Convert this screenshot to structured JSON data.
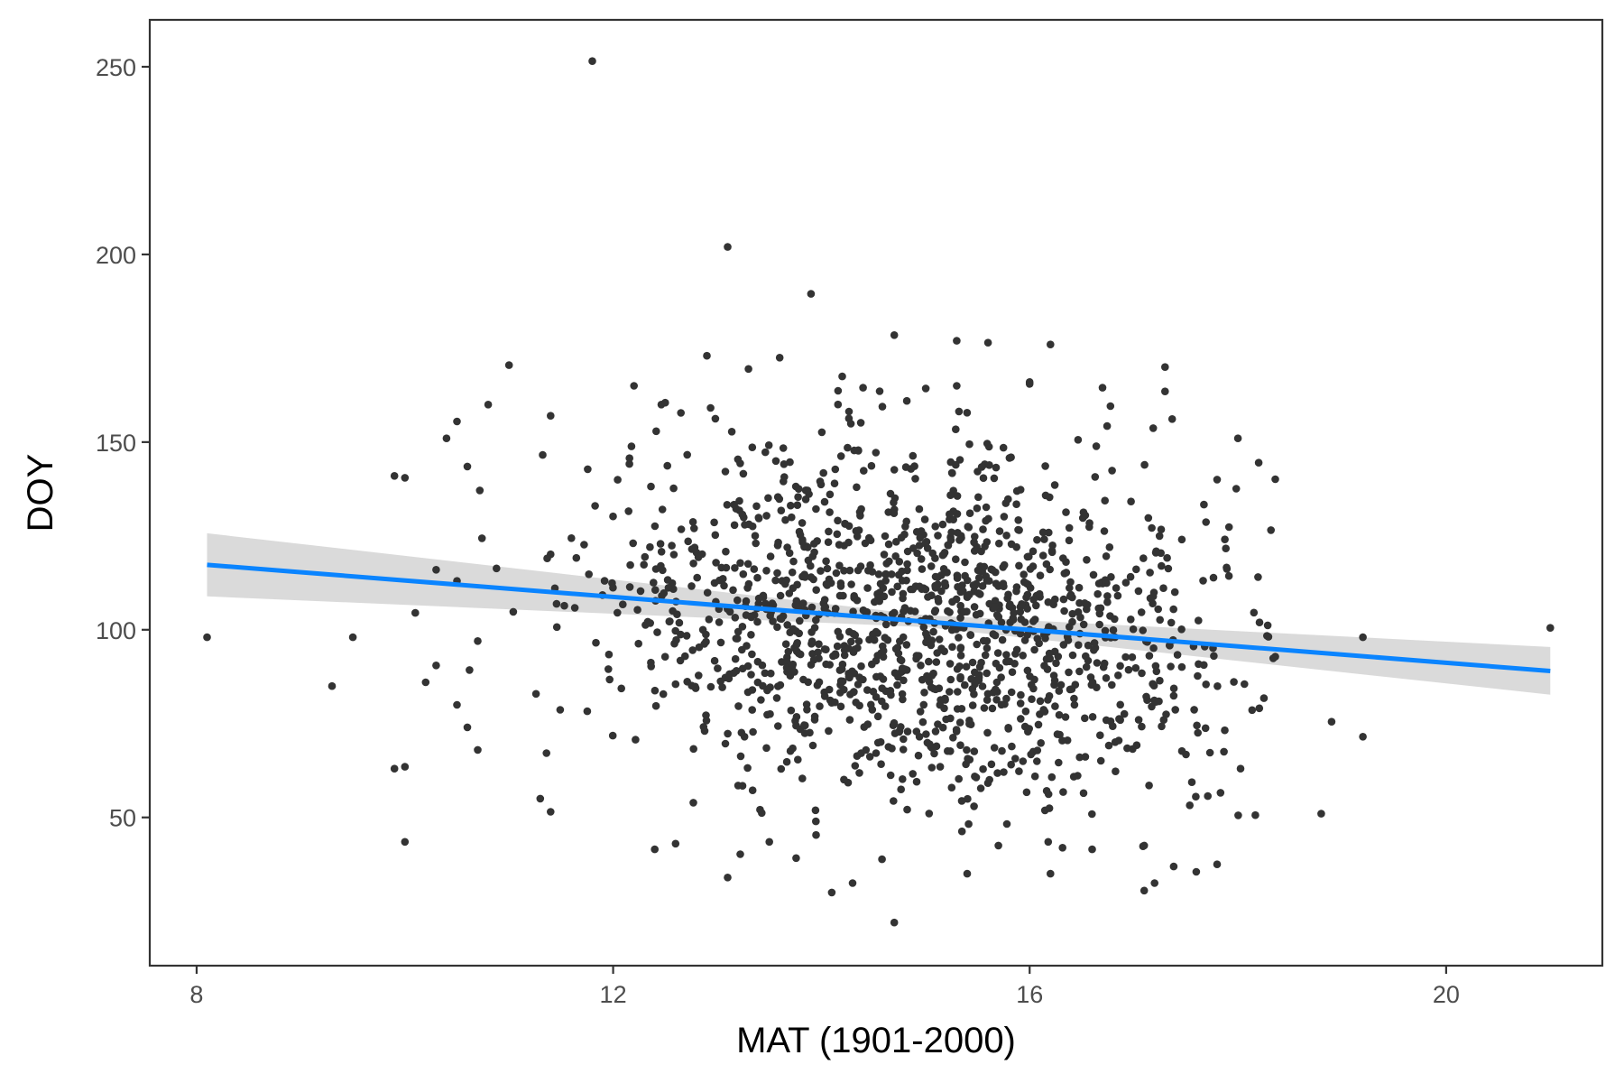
{
  "chart_data": {
    "type": "scatter",
    "title": "",
    "xlabel": "MAT (1901-2000)",
    "ylabel": "DOY",
    "xlim": [
      7.55,
      21.5
    ],
    "ylim": [
      10.5,
      262.5
    ],
    "x_ticks": [
      8,
      12,
      16,
      20
    ],
    "x_tick_labels": [
      "8",
      "12",
      "16",
      "20"
    ],
    "y_ticks": [
      50,
      100,
      150,
      200,
      250
    ],
    "y_tick_labels": [
      "50",
      "100",
      "150",
      "200",
      "250"
    ],
    "grid": false,
    "legend": "none",
    "point_color": "#333333",
    "trend": {
      "method": "linear",
      "x_start": 8.1,
      "y_start": 117.3,
      "x_end": 21.0,
      "y_end": 89.0,
      "ci_start": [
        108.9,
        125.7
      ],
      "ci_mid_x": 15.0,
      "ci_mid": [
        100.7,
        103.9
      ],
      "ci_end": [
        82.7,
        95.4
      ],
      "color": "#0a84ff",
      "ci_color": "#d6d6d6"
    },
    "outliers": [
      [
        11.8,
        251.5
      ],
      [
        13.1,
        202.0
      ],
      [
        13.9,
        189.5
      ],
      [
        14.7,
        178.5
      ],
      [
        15.3,
        177.0
      ],
      [
        15.6,
        176.5
      ],
      [
        16.2,
        176.0
      ],
      [
        11.0,
        170.5
      ],
      [
        17.3,
        170.0
      ],
      [
        13.3,
        169.5
      ],
      [
        14.2,
        167.5
      ],
      [
        16.0,
        166.0
      ],
      [
        15.3,
        165.0
      ],
      [
        12.2,
        165.0
      ],
      [
        16.7,
        164.5
      ],
      [
        16.0,
        165.5
      ],
      [
        17.3,
        163.5
      ],
      [
        14.4,
        164.5
      ],
      [
        13.6,
        172.5
      ],
      [
        12.9,
        173.0
      ],
      [
        10.8,
        160.0
      ],
      [
        12.5,
        160.5
      ],
      [
        10.5,
        155.5
      ],
      [
        11.4,
        157.0
      ],
      [
        18.0,
        151.0
      ],
      [
        18.2,
        144.5
      ],
      [
        10.4,
        151.0
      ],
      [
        17.8,
        140.0
      ],
      [
        9.9,
        141.0
      ],
      [
        10.0,
        140.5
      ],
      [
        19.2,
        98.0
      ],
      [
        21.0,
        100.5
      ],
      [
        18.9,
        75.5
      ],
      [
        19.2,
        71.5
      ],
      [
        18.8,
        51.0
      ],
      [
        8.1,
        98.0
      ],
      [
        9.3,
        85.0
      ],
      [
        9.5,
        98.0
      ],
      [
        9.9,
        63.0
      ],
      [
        10.0,
        63.5
      ],
      [
        10.0,
        43.5
      ],
      [
        10.6,
        74.0
      ],
      [
        10.7,
        68.0
      ],
      [
        11.4,
        51.5
      ],
      [
        12.4,
        41.5
      ],
      [
        12.6,
        43.0
      ],
      [
        13.1,
        34.0
      ],
      [
        13.5,
        43.5
      ],
      [
        14.1,
        30.0
      ],
      [
        14.3,
        32.5
      ],
      [
        14.7,
        22.0
      ],
      [
        15.4,
        35.0
      ],
      [
        16.2,
        35.0
      ],
      [
        17.1,
        30.5
      ],
      [
        17.2,
        32.5
      ],
      [
        17.6,
        35.5
      ],
      [
        17.8,
        37.5
      ],
      [
        17.1,
        42.5
      ],
      [
        16.6,
        41.5
      ],
      [
        15.7,
        42.5
      ],
      [
        13.2,
        58.5
      ],
      [
        11.3,
        55.0
      ],
      [
        10.3,
        90.5
      ],
      [
        10.2,
        86.0
      ],
      [
        10.5,
        80.0
      ],
      [
        10.7,
        97.0
      ],
      [
        10.1,
        104.5
      ],
      [
        10.3,
        116.0
      ],
      [
        10.5,
        113.0
      ],
      [
        10.6,
        143.5
      ]
    ],
    "cloud": {
      "count": 1400,
      "mean_x": 15.0,
      "sd_x": 1.55,
      "x_range": [
        10.6,
        18.4
      ],
      "mean_y": 102,
      "sd_y": 23,
      "y_range": [
        36,
        165
      ]
    }
  }
}
